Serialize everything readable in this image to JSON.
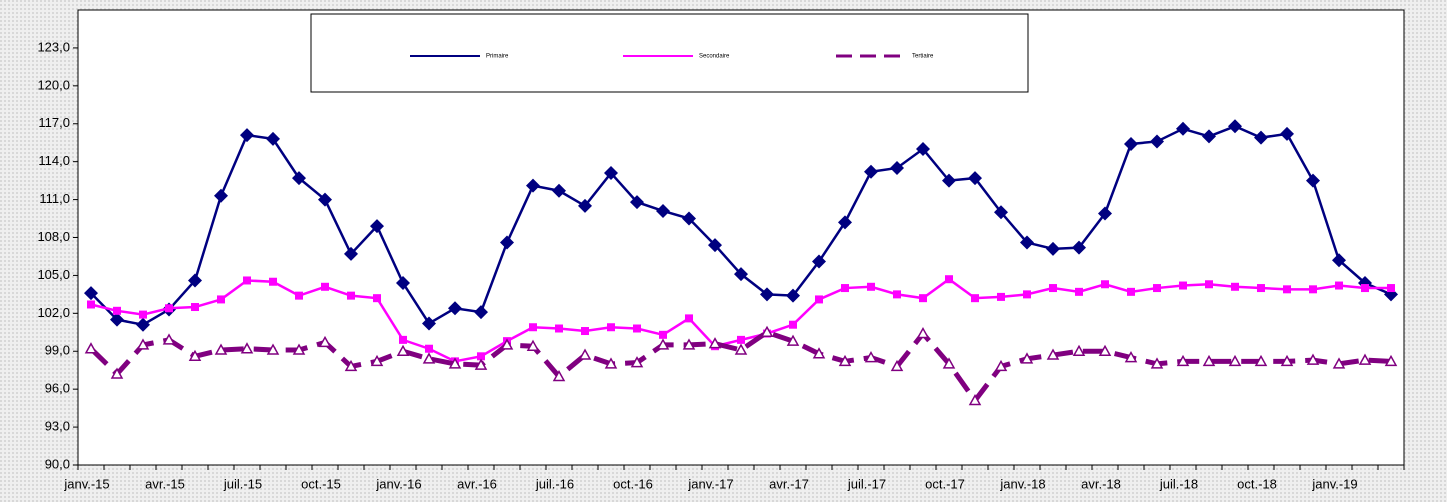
{
  "chart_data": {
    "type": "line",
    "categories": [
      "janv.-15",
      null,
      null,
      "avr.-15",
      null,
      null,
      "juil.-15",
      null,
      null,
      "oct.-15",
      null,
      null,
      "janv.-16",
      null,
      null,
      "avr.-16",
      null,
      null,
      "juil.-16",
      null,
      null,
      "oct.-16",
      null,
      null,
      "janv.-17",
      null,
      null,
      "avr.-17",
      null,
      null,
      "juil.-17",
      null,
      null,
      "oct.-17",
      null,
      null,
      "janv.-18",
      null,
      null,
      "avr.-18",
      null,
      null,
      "juil.-18",
      null,
      null,
      "oct.-18",
      null,
      null,
      "janv.-19",
      null,
      null
    ],
    "series": [
      {
        "name": "Primaire",
        "color": "#000080",
        "marker": "diamond",
        "dashed": false,
        "values": [
          103.6,
          101.5,
          101.1,
          102.3,
          104.6,
          111.3,
          116.1,
          115.8,
          112.7,
          111.0,
          106.7,
          108.9,
          104.4,
          101.2,
          102.4,
          102.1,
          107.6,
          112.1,
          111.7,
          110.5,
          113.1,
          110.8,
          110.1,
          109.5,
          107.4,
          105.1,
          103.5,
          103.4,
          106.1,
          109.2,
          113.2,
          113.5,
          115.0,
          112.5,
          112.7,
          110.0,
          107.6,
          107.1,
          107.2,
          109.9,
          115.4,
          115.6,
          116.6,
          116.0,
          116.8,
          115.9,
          116.2,
          112.5,
          106.2,
          104.4,
          103.5
        ]
      },
      {
        "name": "Secondaire",
        "color": "#ff00ff",
        "marker": "square",
        "dashed": false,
        "values": [
          102.7,
          102.2,
          101.9,
          102.4,
          102.5,
          103.1,
          104.6,
          104.5,
          103.4,
          104.1,
          103.4,
          103.2,
          99.9,
          99.2,
          98.2,
          98.6,
          99.8,
          100.9,
          100.8,
          100.6,
          100.9,
          100.8,
          100.3,
          101.6,
          99.4,
          99.9,
          100.4,
          101.1,
          103.1,
          104.0,
          104.1,
          103.5,
          103.2,
          104.7,
          103.2,
          103.3,
          103.5,
          104.0,
          103.7,
          104.3,
          103.7,
          104.0,
          104.2,
          104.3,
          104.1,
          104.0,
          103.9,
          103.9,
          104.2,
          104.0,
          104.0
        ]
      },
      {
        "name": "Tertiaire",
        "color": "#800080",
        "marker": "triangle",
        "dashed": true,
        "values": [
          99.2,
          97.2,
          99.5,
          99.9,
          98.6,
          99.1,
          99.2,
          99.1,
          99.1,
          99.7,
          97.8,
          98.2,
          99.0,
          98.4,
          98.0,
          97.9,
          99.5,
          99.4,
          97.0,
          98.7,
          98.0,
          98.1,
          99.5,
          99.5,
          99.6,
          99.1,
          100.5,
          99.8,
          98.8,
          98.2,
          98.5,
          97.8,
          100.4,
          98.0,
          95.1,
          97.8,
          98.4,
          98.7,
          99.0,
          99.0,
          98.5,
          98.0,
          98.2,
          98.2,
          98.2,
          98.2,
          98.2,
          98.3,
          98.0,
          98.3,
          98.2
        ]
      }
    ],
    "ylim": [
      90,
      126
    ],
    "yticks": [
      {
        "value": 90,
        "label": "90,0"
      },
      {
        "value": 93,
        "label": "93,0"
      },
      {
        "value": 96,
        "label": "96,0"
      },
      {
        "value": 99,
        "label": "99,0"
      },
      {
        "value": 102,
        "label": "102,0"
      },
      {
        "value": 105,
        "label": "105,0"
      },
      {
        "value": 108,
        "label": "108,0"
      },
      {
        "value": 111,
        "label": "111,0"
      },
      {
        "value": 114,
        "label": "114,0"
      },
      {
        "value": 117,
        "label": "117,0"
      },
      {
        "value": 120,
        "label": "120,0"
      },
      {
        "value": 123,
        "label": "123,0"
      }
    ],
    "legend": "top"
  }
}
